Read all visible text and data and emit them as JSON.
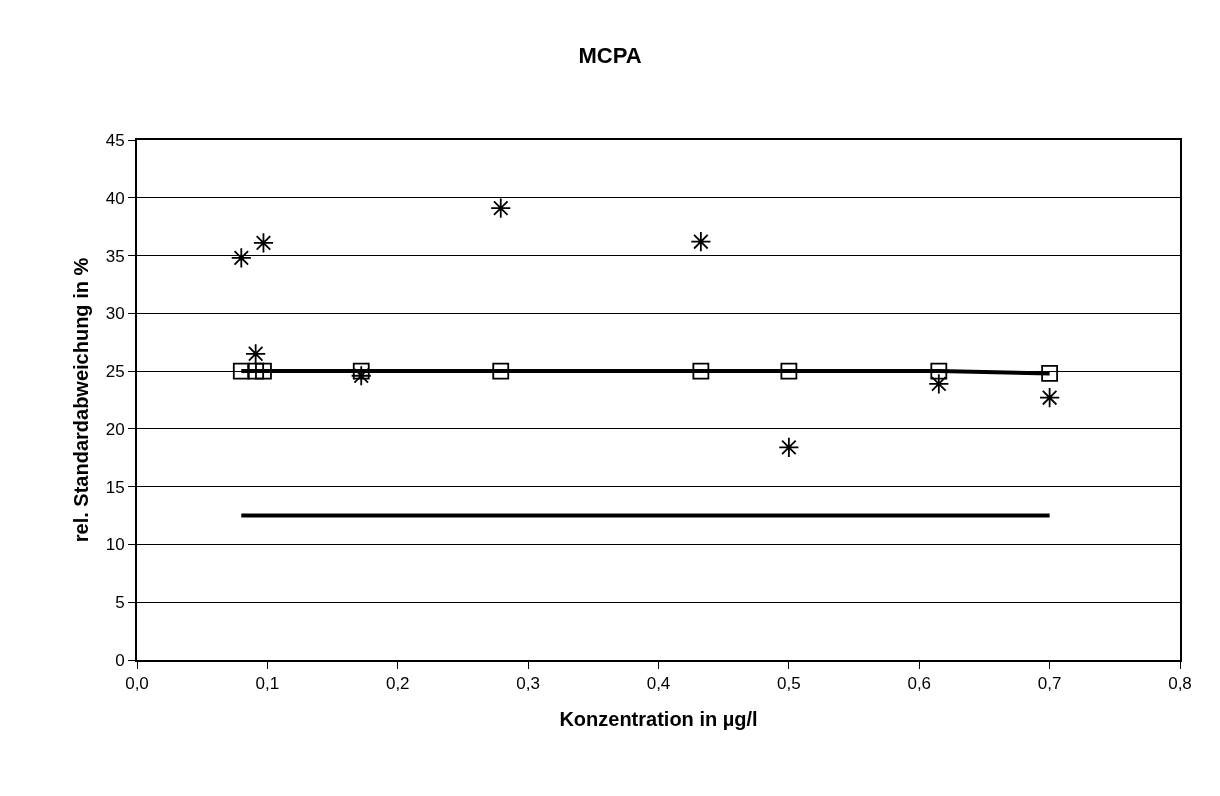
{
  "chart_data": {
    "type": "scatter",
    "title": "MCPA",
    "xlabel": "Konzentration in µg/l",
    "ylabel": "rel. Standardabweichung in %",
    "xlim": [
      0,
      0.8
    ],
    "xticks": [
      {
        "value": 0,
        "label": "0,0"
      },
      {
        "value": 0.1,
        "label": "0,1"
      },
      {
        "value": 0.2,
        "label": "0,2"
      },
      {
        "value": 0.3,
        "label": "0,3"
      },
      {
        "value": 0.4,
        "label": "0,4"
      },
      {
        "value": 0.5,
        "label": "0,5"
      },
      {
        "value": 0.6,
        "label": "0,6"
      },
      {
        "value": 0.7,
        "label": "0,7"
      },
      {
        "value": 0.8,
        "label": "0,8"
      }
    ],
    "ylim": [
      0,
      45
    ],
    "yticks": [
      0,
      5,
      10,
      15,
      20,
      25,
      30,
      35,
      40,
      45
    ],
    "grid": "y",
    "series": [
      {
        "marker": "cross",
        "color": "#000000",
        "x": [
          0.08,
          0.091,
          0.097,
          0.172,
          0.279,
          0.4325,
          0.5,
          0.615,
          0.7
        ],
        "values": [
          34.8,
          26.5,
          36.1,
          24.6,
          39.1,
          36.2,
          18.4,
          23.9,
          22.7
        ]
      },
      {
        "type": "line",
        "marker": "square",
        "line_style": "solid",
        "color": "#000000",
        "x": [
          0.08,
          0.091,
          0.097,
          0.172,
          0.279,
          0.4325,
          0.5,
          0.615,
          0.7
        ],
        "values": [
          25,
          25,
          25,
          25,
          25,
          25,
          25,
          25,
          24.8
        ]
      },
      {
        "type": "line",
        "marker": "none",
        "line_style": "solid",
        "color": "#000000",
        "x": [
          0.08,
          0.7
        ],
        "values": [
          12.5,
          12.5
        ]
      }
    ]
  }
}
